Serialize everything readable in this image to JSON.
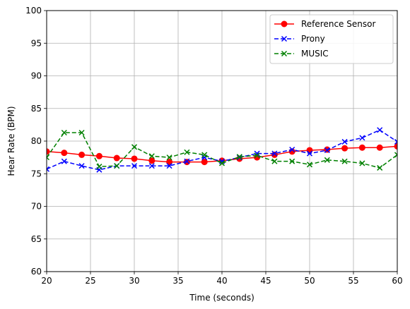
{
  "chart_data": {
    "type": "line",
    "xlabel": "Time (seconds)",
    "ylabel": "Hear Rate (BPM)",
    "xlim": [
      20,
      60
    ],
    "ylim": [
      60,
      100
    ],
    "xticks": [
      20,
      25,
      30,
      35,
      40,
      45,
      50,
      55,
      60
    ],
    "yticks": [
      60,
      65,
      70,
      75,
      80,
      85,
      90,
      95,
      100
    ],
    "grid": true,
    "legend_position": "top-right",
    "x": [
      20,
      22,
      24,
      26,
      28,
      30,
      32,
      34,
      36,
      38,
      40,
      42,
      44,
      46,
      48,
      50,
      52,
      54,
      56,
      58,
      60
    ],
    "series": [
      {
        "name": "Reference Sensor",
        "color": "#ff0000",
        "line_style": "solid",
        "marker": "circle",
        "values": [
          78.4,
          78.2,
          77.9,
          77.7,
          77.4,
          77.3,
          77.0,
          76.8,
          76.8,
          76.8,
          77.0,
          77.3,
          77.5,
          77.9,
          78.4,
          78.6,
          78.7,
          78.9,
          79.0,
          79.0,
          79.2
        ]
      },
      {
        "name": "Prony",
        "color": "#0000ff",
        "line_style": "dashed",
        "marker": "x",
        "values": [
          75.7,
          76.9,
          76.2,
          75.6,
          76.2,
          76.2,
          76.2,
          76.2,
          76.9,
          77.5,
          76.9,
          77.5,
          78.1,
          78.1,
          78.7,
          78.1,
          78.6,
          79.9,
          80.5,
          81.7,
          79.9
        ]
      },
      {
        "name": "MUSIC",
        "color": "#008000",
        "line_style": "dashed",
        "marker": "x",
        "values": [
          77.5,
          81.3,
          81.3,
          76.1,
          76.2,
          79.1,
          77.7,
          77.5,
          78.3,
          77.9,
          76.6,
          77.6,
          77.8,
          76.9,
          76.9,
          76.4,
          77.1,
          76.9,
          76.6,
          75.9,
          77.9
        ]
      }
    ]
  }
}
